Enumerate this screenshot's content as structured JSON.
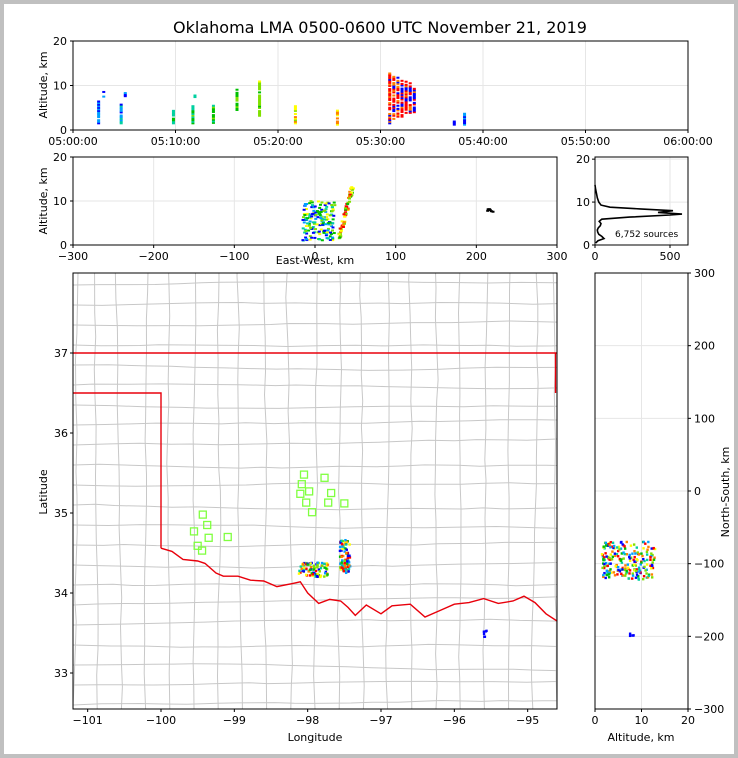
{
  "chart_data": [
    {
      "id": "time-height",
      "type": "scatter",
      "title": "Oklahoma LMA 0500-0600 UTC November 21, 2019",
      "ylabel": "Altitude, km",
      "xlabel": "",
      "xlim_minutes": [
        0,
        60
      ],
      "ylim": [
        0,
        20
      ],
      "x_ticks": [
        "05:00:00",
        "05:10:00",
        "05:20:00",
        "05:30:00",
        "05:40:00",
        "05:50:00",
        "06:00:00"
      ],
      "y_ticks": [
        "0",
        "10",
        "20"
      ],
      "source_columns": [
        {
          "t": 2.5,
          "zmin": 1.5,
          "zmax": 6.5
        },
        {
          "t": 3.0,
          "zmin": 7.5,
          "zmax": 8.8
        },
        {
          "t": 4.7,
          "zmin": 1.5,
          "zmax": 6.0
        },
        {
          "t": 5.1,
          "zmin": 7.6,
          "zmax": 8.6
        },
        {
          "t": 9.8,
          "zmin": 1.5,
          "zmax": 4.5
        },
        {
          "t": 11.7,
          "zmin": 1.5,
          "zmax": 5.5
        },
        {
          "t": 11.9,
          "zmin": 7.4,
          "zmax": 8.0
        },
        {
          "t": 13.7,
          "zmin": 1.6,
          "zmax": 5.5
        },
        {
          "t": 16.0,
          "zmin": 4.5,
          "zmax": 10.0
        },
        {
          "t": 18.2,
          "zmin": 2.5,
          "zmax": 11.0
        },
        {
          "t": 21.7,
          "zmin": 1.5,
          "zmax": 5.6
        },
        {
          "t": 25.8,
          "zmin": 1.2,
          "zmax": 5.0
        },
        {
          "t": 30.9,
          "zmin": 1.5,
          "zmax": 13.0
        },
        {
          "t": 31.3,
          "zmin": 2.5,
          "zmax": 12.5
        },
        {
          "t": 31.7,
          "zmin": 3.0,
          "zmax": 12.0
        },
        {
          "t": 32.1,
          "zmin": 3.0,
          "zmax": 11.5
        },
        {
          "t": 32.5,
          "zmin": 3.5,
          "zmax": 11.0
        },
        {
          "t": 32.9,
          "zmin": 3.5,
          "zmax": 10.5
        },
        {
          "t": 33.3,
          "zmin": 4.0,
          "zmax": 10.0
        },
        {
          "t": 37.2,
          "zmin": 1.2,
          "zmax": 2.2
        },
        {
          "t": 38.2,
          "zmin": 1.2,
          "zmax": 3.8
        }
      ]
    },
    {
      "id": "east-west-altitude",
      "type": "scatter",
      "xlabel": "East-West, km",
      "ylabel": "Altitude, km",
      "xlim": [
        -300,
        300
      ],
      "ylim": [
        0,
        20
      ],
      "x_ticks": [
        "−300",
        "−200",
        "−100",
        "0",
        "100",
        "200",
        "300"
      ],
      "y_ticks": [
        "0",
        "10",
        "20"
      ],
      "clusters": [
        {
          "x0": -15,
          "x1": 25,
          "z0": 1.0,
          "z1": 10.0
        },
        {
          "x0": 30,
          "x1": 47,
          "z0": 1.5,
          "z1": 13.5
        },
        {
          "x0": 213,
          "x1": 222,
          "z0": 7.5,
          "z1": 8.8
        }
      ]
    },
    {
      "id": "altitude-histogram",
      "type": "line",
      "annotation": "6,752 sources",
      "xlim": [
        0,
        620
      ],
      "ylim": [
        0,
        20.5
      ],
      "x_ticks": [
        "0",
        "500"
      ],
      "y_ticks": [
        "0",
        "10",
        "20"
      ],
      "profile": [
        {
          "z": 0.5,
          "n": 5
        },
        {
          "z": 1.0,
          "n": 20
        },
        {
          "z": 1.5,
          "n": 60
        },
        {
          "z": 2.0,
          "n": 45
        },
        {
          "z": 2.5,
          "n": 25
        },
        {
          "z": 3.0,
          "n": 18
        },
        {
          "z": 3.5,
          "n": 15
        },
        {
          "z": 4.0,
          "n": 22
        },
        {
          "z": 4.5,
          "n": 35
        },
        {
          "z": 5.0,
          "n": 40
        },
        {
          "z": 5.5,
          "n": 28
        },
        {
          "z": 6.0,
          "n": 45
        },
        {
          "z": 6.5,
          "n": 230
        },
        {
          "z": 7.0,
          "n": 500
        },
        {
          "z": 7.2,
          "n": 580
        },
        {
          "z": 7.6,
          "n": 420
        },
        {
          "z": 8.0,
          "n": 520
        },
        {
          "z": 8.4,
          "n": 300
        },
        {
          "z": 8.8,
          "n": 100
        },
        {
          "z": 9.3,
          "n": 40
        },
        {
          "z": 10.0,
          "n": 25
        },
        {
          "z": 11.0,
          "n": 15
        },
        {
          "z": 12.0,
          "n": 10
        },
        {
          "z": 13.0,
          "n": 4
        },
        {
          "z": 14.0,
          "n": 0
        }
      ]
    },
    {
      "id": "plan-view",
      "type": "scatter",
      "xlabel": "Longitude",
      "ylabel": "Latitude",
      "xlim": [
        -101.2,
        -94.6
      ],
      "ylim": [
        32.55,
        38.0
      ],
      "x_ticks": [
        "−101",
        "−100",
        "−99",
        "−98",
        "−97",
        "−96",
        "−95"
      ],
      "y_ticks": [
        "33",
        "34",
        "35",
        "36",
        "37"
      ],
      "stations": [
        [
          -98.05,
          35.48
        ],
        [
          -98.08,
          35.36
        ],
        [
          -98.1,
          35.24
        ],
        [
          -97.98,
          35.27
        ],
        [
          -97.77,
          35.44
        ],
        [
          -97.68,
          35.25
        ],
        [
          -97.72,
          35.13
        ],
        [
          -97.5,
          35.12
        ],
        [
          -98.02,
          35.13
        ],
        [
          -97.94,
          35.01
        ],
        [
          -99.43,
          34.98
        ],
        [
          -99.37,
          34.85
        ],
        [
          -99.55,
          34.77
        ],
        [
          -99.35,
          34.69
        ],
        [
          -99.09,
          34.7
        ],
        [
          -99.5,
          34.59
        ],
        [
          -99.44,
          34.53
        ]
      ],
      "source_clusters": [
        {
          "lon0": -98.12,
          "lon1": -97.72,
          "lat0": 34.2,
          "lat1": 34.38
        },
        {
          "lon0": -97.56,
          "lon1": -97.42,
          "lat0": 34.25,
          "lat1": 34.67
        },
        {
          "lon0": -95.63,
          "lon1": -95.53,
          "lat0": 33.45,
          "lat1": 33.53
        }
      ]
    },
    {
      "id": "altitude-north-south",
      "type": "scatter",
      "xlabel": "Altitude, km",
      "ylabel": "North-South, km",
      "xlim": [
        0,
        20
      ],
      "ylim": [
        -300,
        300
      ],
      "x_ticks": [
        "0",
        "10",
        "20"
      ],
      "y_ticks": [
        "−300",
        "−200",
        "−100",
        "0",
        "100",
        "200",
        "300"
      ],
      "clusters": [
        {
          "z0": 1.5,
          "z1": 13.0,
          "y0": -122,
          "y1": -70
        },
        {
          "z0": 7.5,
          "z1": 8.8,
          "y0": -200,
          "y1": -195
        }
      ]
    }
  ],
  "colors": {
    "state_border": "#e8000b",
    "county_lines": "#c8c8c8",
    "station": "#80ff40",
    "source_palette": [
      "#0000ff",
      "#00a0ff",
      "#00d0a0",
      "#00c000",
      "#80e000",
      "#ffff00",
      "#ff8000",
      "#ff0000"
    ]
  }
}
